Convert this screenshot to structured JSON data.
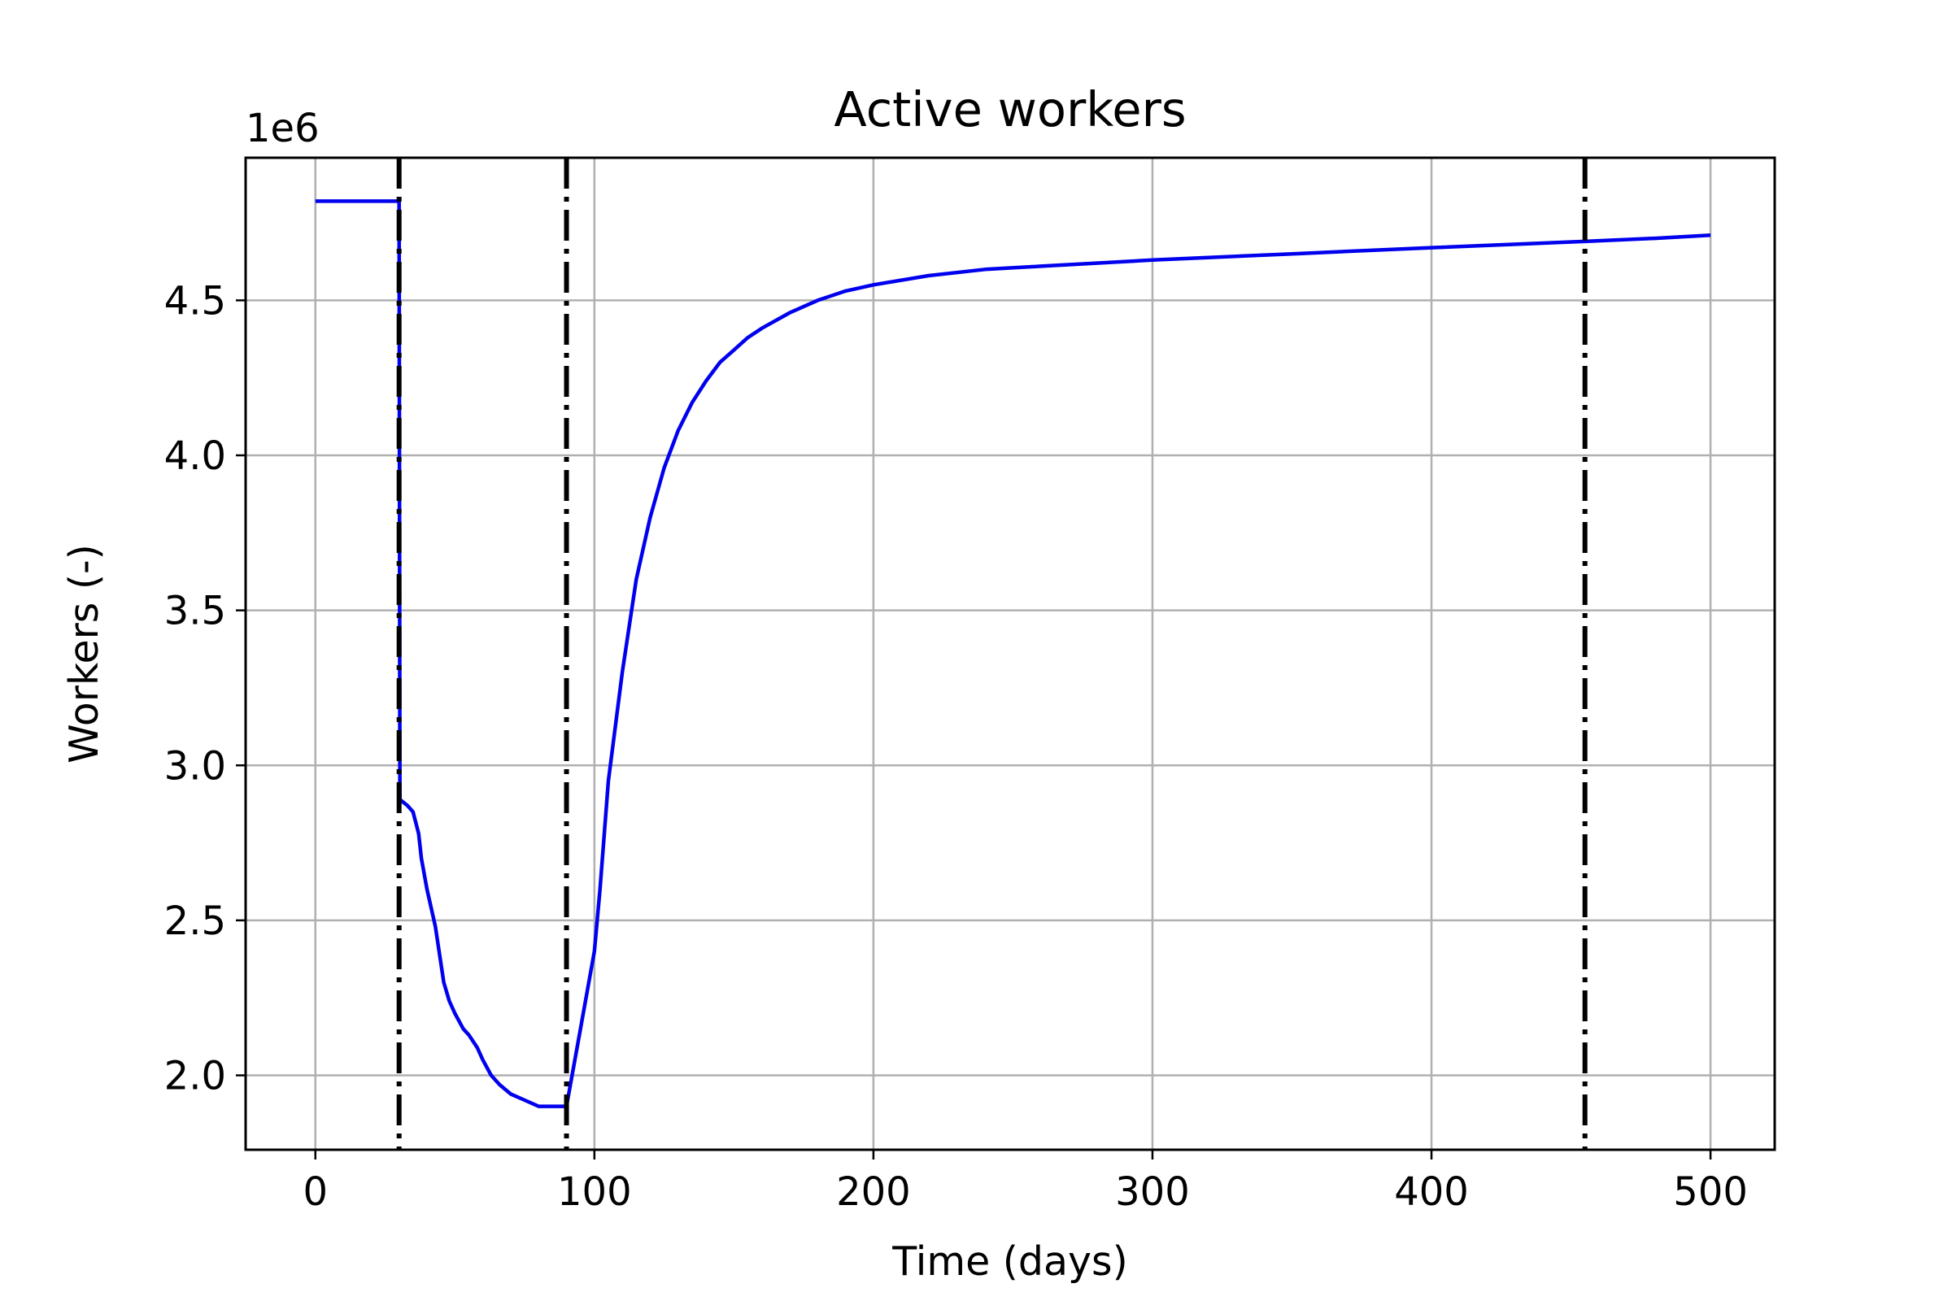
{
  "chart_data": {
    "type": "line",
    "title": "Active workers",
    "xlabel": "Time (days)",
    "ylabel": "Workers (-)",
    "y_offset_label": "1e6",
    "xlim": [
      -25,
      523
    ],
    "ylim": [
      1.76,
      4.96
    ],
    "x_ticks": [
      0,
      100,
      200,
      300,
      400,
      500
    ],
    "x_tick_labels": [
      "0",
      "100",
      "200",
      "300",
      "400",
      "500"
    ],
    "y_ticks": [
      2.0,
      2.5,
      3.0,
      3.5,
      4.0,
      4.5
    ],
    "y_tick_labels": [
      "2.0",
      "2.5",
      "3.0",
      "3.5",
      "4.0",
      "4.5"
    ],
    "grid": true,
    "legend": "none",
    "vertical_lines": [
      30,
      90,
      455
    ],
    "colors": {
      "series": "#0000ee",
      "vline": "#000000",
      "grid": "#b0b0b0",
      "axes": "#000000"
    },
    "series": [
      {
        "x": [
          0,
          29.5,
          30,
          30.3,
          33,
          35,
          37,
          38,
          40,
          43,
          46,
          48,
          50,
          53,
          55,
          58,
          60,
          63,
          66,
          70,
          75,
          80,
          85,
          90,
          95,
          100,
          102,
          105,
          110,
          115,
          120,
          125,
          130,
          135,
          140,
          145,
          150,
          155,
          160,
          170,
          180,
          190,
          200,
          220,
          240,
          260,
          300,
          350,
          400,
          455,
          480,
          500
        ],
        "y": [
          4.82,
          4.82,
          4.82,
          2.89,
          2.87,
          2.85,
          2.78,
          2.7,
          2.6,
          2.48,
          2.3,
          2.24,
          2.2,
          2.15,
          2.13,
          2.09,
          2.05,
          2.0,
          1.97,
          1.94,
          1.92,
          1.9,
          1.9,
          1.9,
          2.15,
          2.4,
          2.6,
          2.95,
          3.3,
          3.6,
          3.8,
          3.96,
          4.08,
          4.17,
          4.24,
          4.3,
          4.34,
          4.38,
          4.41,
          4.46,
          4.5,
          4.53,
          4.55,
          4.58,
          4.6,
          4.61,
          4.63,
          4.65,
          4.67,
          4.69,
          4.7,
          4.71
        ]
      }
    ]
  }
}
